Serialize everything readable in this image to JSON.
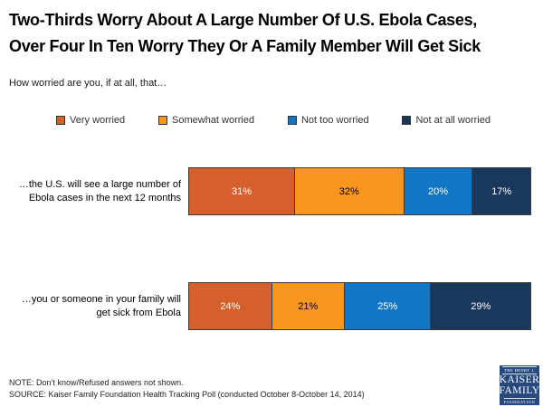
{
  "header": {
    "title_line1": "Two-Thirds Worry About A Large Number Of U.S. Ebola Cases,",
    "title_line2": "Over Four In Ten Worry They Or A Family Member Will Get Sick",
    "subtitle": "How worried are you, if at all, that…"
  },
  "chart_data": {
    "type": "bar",
    "orientation": "horizontal",
    "stacked": true,
    "unit": "%",
    "xlim": [
      0,
      100
    ],
    "legend_position": "top",
    "value_labels": "inside",
    "categories": [
      "…the U.S. will see a large number of Ebola cases in the next 12 months",
      "…you or someone in your family will get sick from Ebola"
    ],
    "series": [
      {
        "name": "Very worried",
        "color": "#D6602C",
        "label_color": "#FFFFFF",
        "values": [
          31,
          24
        ]
      },
      {
        "name": "Somewhat worried",
        "color": "#F9961D",
        "label_color": "#000000",
        "values": [
          32,
          21
        ]
      },
      {
        "name": "Not too worried",
        "color": "#1176C5",
        "label_color": "#FFFFFF",
        "values": [
          20,
          25
        ]
      },
      {
        "name": "Not at all worried",
        "color": "#1A375C",
        "label_color": "#FFFFFF",
        "values": [
          17,
          29
        ]
      }
    ]
  },
  "footer": {
    "note": "NOTE: Don’t know/Refused answers not shown.",
    "source": "SOURCE: Kaiser Family Foundation Health Tracking Poll (conducted October 8-October 14, 2014)"
  },
  "logo": {
    "top_text": "THE HENRY J.",
    "name_line1": "KAISER",
    "name_line2": "FAMILY",
    "bottom_text": "FOUNDATION",
    "bg_color": "#27497E"
  }
}
